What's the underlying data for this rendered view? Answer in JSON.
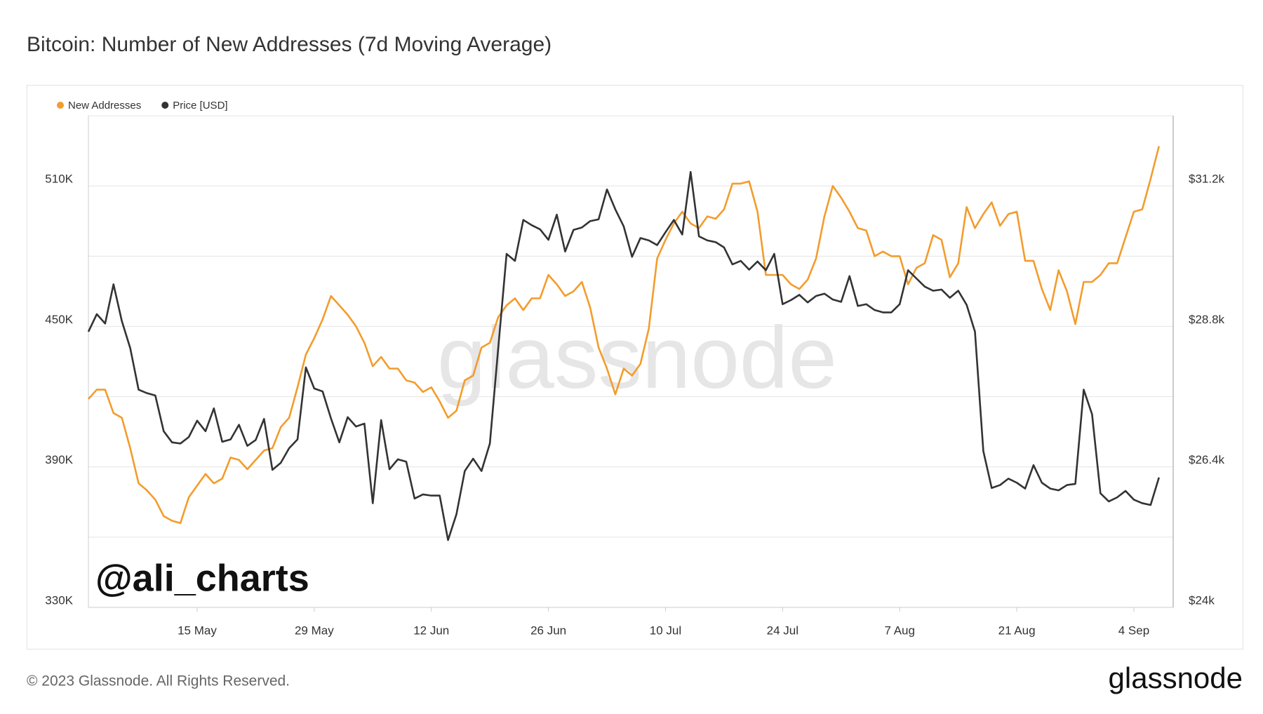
{
  "chart_data": {
    "type": "line",
    "title": "Bitcoin: Number of New Addresses (7d Moving Average)",
    "footer": "© 2023 Glassnode. All Rights Reserved.",
    "logo": "glassnode",
    "watermark": "glassnode",
    "annotation": "@ali_charts",
    "x": [
      "2 May",
      "3 May",
      "4 May",
      "5 May",
      "6 May",
      "7 May",
      "8 May",
      "9 May",
      "10 May",
      "11 May",
      "12 May",
      "13 May",
      "14 May",
      "15 May",
      "16 May",
      "17 May",
      "18 May",
      "19 May",
      "20 May",
      "21 May",
      "22 May",
      "23 May",
      "24 May",
      "25 May",
      "26 May",
      "27 May",
      "28 May",
      "29 May",
      "30 May",
      "31 May",
      "1 Jun",
      "2 Jun",
      "3 Jun",
      "4 Jun",
      "5 Jun",
      "6 Jun",
      "7 Jun",
      "8 Jun",
      "9 Jun",
      "10 Jun",
      "11 Jun",
      "12 Jun",
      "13 Jun",
      "14 Jun",
      "15 Jun",
      "16 Jun",
      "17 Jun",
      "18 Jun",
      "19 Jun",
      "20 Jun",
      "21 Jun",
      "22 Jun",
      "23 Jun",
      "24 Jun",
      "25 Jun",
      "26 Jun",
      "27 Jun",
      "28 Jun",
      "29 Jun",
      "30 Jun",
      "1 Jul",
      "2 Jul",
      "3 Jul",
      "4 Jul",
      "5 Jul",
      "6 Jul",
      "7 Jul",
      "8 Jul",
      "9 Jul",
      "10 Jul",
      "11 Jul",
      "12 Jul",
      "13 Jul",
      "14 Jul",
      "15 Jul",
      "16 Jul",
      "17 Jul",
      "18 Jul",
      "19 Jul",
      "20 Jul",
      "21 Jul",
      "22 Jul",
      "23 Jul",
      "24 Jul",
      "25 Jul",
      "26 Jul",
      "27 Jul",
      "28 Jul",
      "29 Jul",
      "30 Jul",
      "31 Jul",
      "1 Aug",
      "2 Aug",
      "3 Aug",
      "4 Aug",
      "5 Aug",
      "6 Aug",
      "7 Aug",
      "8 Aug",
      "9 Aug",
      "10 Aug",
      "11 Aug",
      "12 Aug",
      "13 Aug",
      "14 Aug",
      "15 Aug",
      "16 Aug",
      "17 Aug",
      "18 Aug",
      "19 Aug",
      "20 Aug",
      "21 Aug",
      "22 Aug",
      "23 Aug",
      "24 Aug",
      "25 Aug",
      "26 Aug",
      "27 Aug",
      "28 Aug",
      "29 Aug",
      "30 Aug",
      "31 Aug",
      "1 Sep",
      "2 Sep",
      "3 Sep",
      "4 Sep",
      "5 Sep",
      "6 Sep",
      "7 Sep"
    ],
    "xticks": [
      "15 May",
      "29 May",
      "12 Jun",
      "26 Jun",
      "10 Jul",
      "24 Jul",
      "7 Aug",
      "21 Aug",
      "4 Sep"
    ],
    "series": [
      {
        "name": "New Addresses",
        "color": "#f39c2c",
        "axis": "y",
        "values": [
          419000,
          423000,
          423000,
          413000,
          411000,
          398000,
          383000,
          380000,
          376000,
          369000,
          367000,
          366000,
          377000,
          382000,
          387000,
          383000,
          385000,
          394000,
          393000,
          389000,
          393000,
          397000,
          398000,
          407000,
          411000,
          424000,
          438000,
          445000,
          453000,
          463000,
          459000,
          455000,
          450000,
          443000,
          433000,
          437000,
          432000,
          432000,
          427000,
          426000,
          422000,
          424000,
          418000,
          411000,
          414000,
          427000,
          429000,
          441000,
          443000,
          454000,
          459000,
          462000,
          457000,
          462000,
          462000,
          472000,
          468000,
          463000,
          465000,
          469000,
          458000,
          441000,
          432000,
          421000,
          432000,
          429000,
          434000,
          449000,
          479000,
          487000,
          494000,
          499000,
          494000,
          492000,
          497000,
          496000,
          500000,
          511000,
          511000,
          512000,
          499000,
          472000,
          472000,
          472000,
          468000,
          466000,
          470000,
          479000,
          497000,
          510000,
          505000,
          499000,
          492000,
          491000,
          480000,
          482000,
          480000,
          480000,
          468000,
          475000,
          477000,
          489000,
          487000,
          471000,
          477000,
          501000,
          492000,
          498000,
          503000,
          493000,
          498000,
          499000,
          478000,
          478000,
          466000,
          457000,
          474000,
          465000,
          451000,
          469000,
          469000,
          472000,
          477000,
          477000,
          488000,
          499000,
          500000,
          513000,
          527000
        ]
      },
      {
        "name": "Price [USD]",
        "color": "#333333",
        "axis": "y2",
        "values": [
          28710,
          29010,
          28850,
          29520,
          28890,
          28430,
          27720,
          27660,
          27620,
          27010,
          26820,
          26800,
          26910,
          27190,
          27010,
          27400,
          26830,
          26870,
          27120,
          26760,
          26860,
          27220,
          26350,
          26470,
          26720,
          26870,
          28100,
          27740,
          27690,
          27230,
          26820,
          27250,
          27090,
          27140,
          25780,
          27200,
          26360,
          26530,
          26490,
          25860,
          25930,
          25910,
          25910,
          25150,
          25590,
          26330,
          26540,
          26330,
          26800,
          28430,
          30040,
          29920,
          30620,
          30530,
          30460,
          30280,
          30710,
          30080,
          30450,
          30490,
          30600,
          30630,
          31140,
          30800,
          30510,
          29990,
          30310,
          30270,
          30190,
          30410,
          30620,
          30370,
          31440,
          30340,
          30270,
          30240,
          30150,
          29860,
          29920,
          29770,
          29910,
          29760,
          30040,
          29180,
          29250,
          29340,
          29210,
          29320,
          29360,
          29260,
          29220,
          29660,
          29150,
          29180,
          29080,
          29040,
          29040,
          29180,
          29760,
          29620,
          29480,
          29410,
          29430,
          29290,
          29410,
          29170,
          28710,
          26670,
          26040,
          26090,
          26200,
          26130,
          26030,
          26430,
          26130,
          26030,
          26000,
          26090,
          26110,
          27720,
          27300,
          25950,
          25810,
          25880,
          25990,
          25840,
          25780,
          25750,
          26220
        ]
      }
    ],
    "ylim": [
      330000,
      540000
    ],
    "yticks": [
      {
        "value": 330000,
        "label": "330K"
      },
      {
        "value": 390000,
        "label": "390K"
      },
      {
        "value": 450000,
        "label": "450K"
      },
      {
        "value": 510000,
        "label": "510K"
      }
    ],
    "ygrid": [
      330000,
      360000,
      390000,
      420000,
      450000,
      480000,
      510000
    ],
    "y2lim": [
      24000,
      32400
    ],
    "y2ticks": [
      {
        "value": 24000,
        "label": "$24k"
      },
      {
        "value": 26400,
        "label": "$26.4k"
      },
      {
        "value": 28800,
        "label": "$28.8k"
      },
      {
        "value": 31200,
        "label": "$31.2k"
      }
    ],
    "grid": true,
    "legend": "top-left"
  }
}
